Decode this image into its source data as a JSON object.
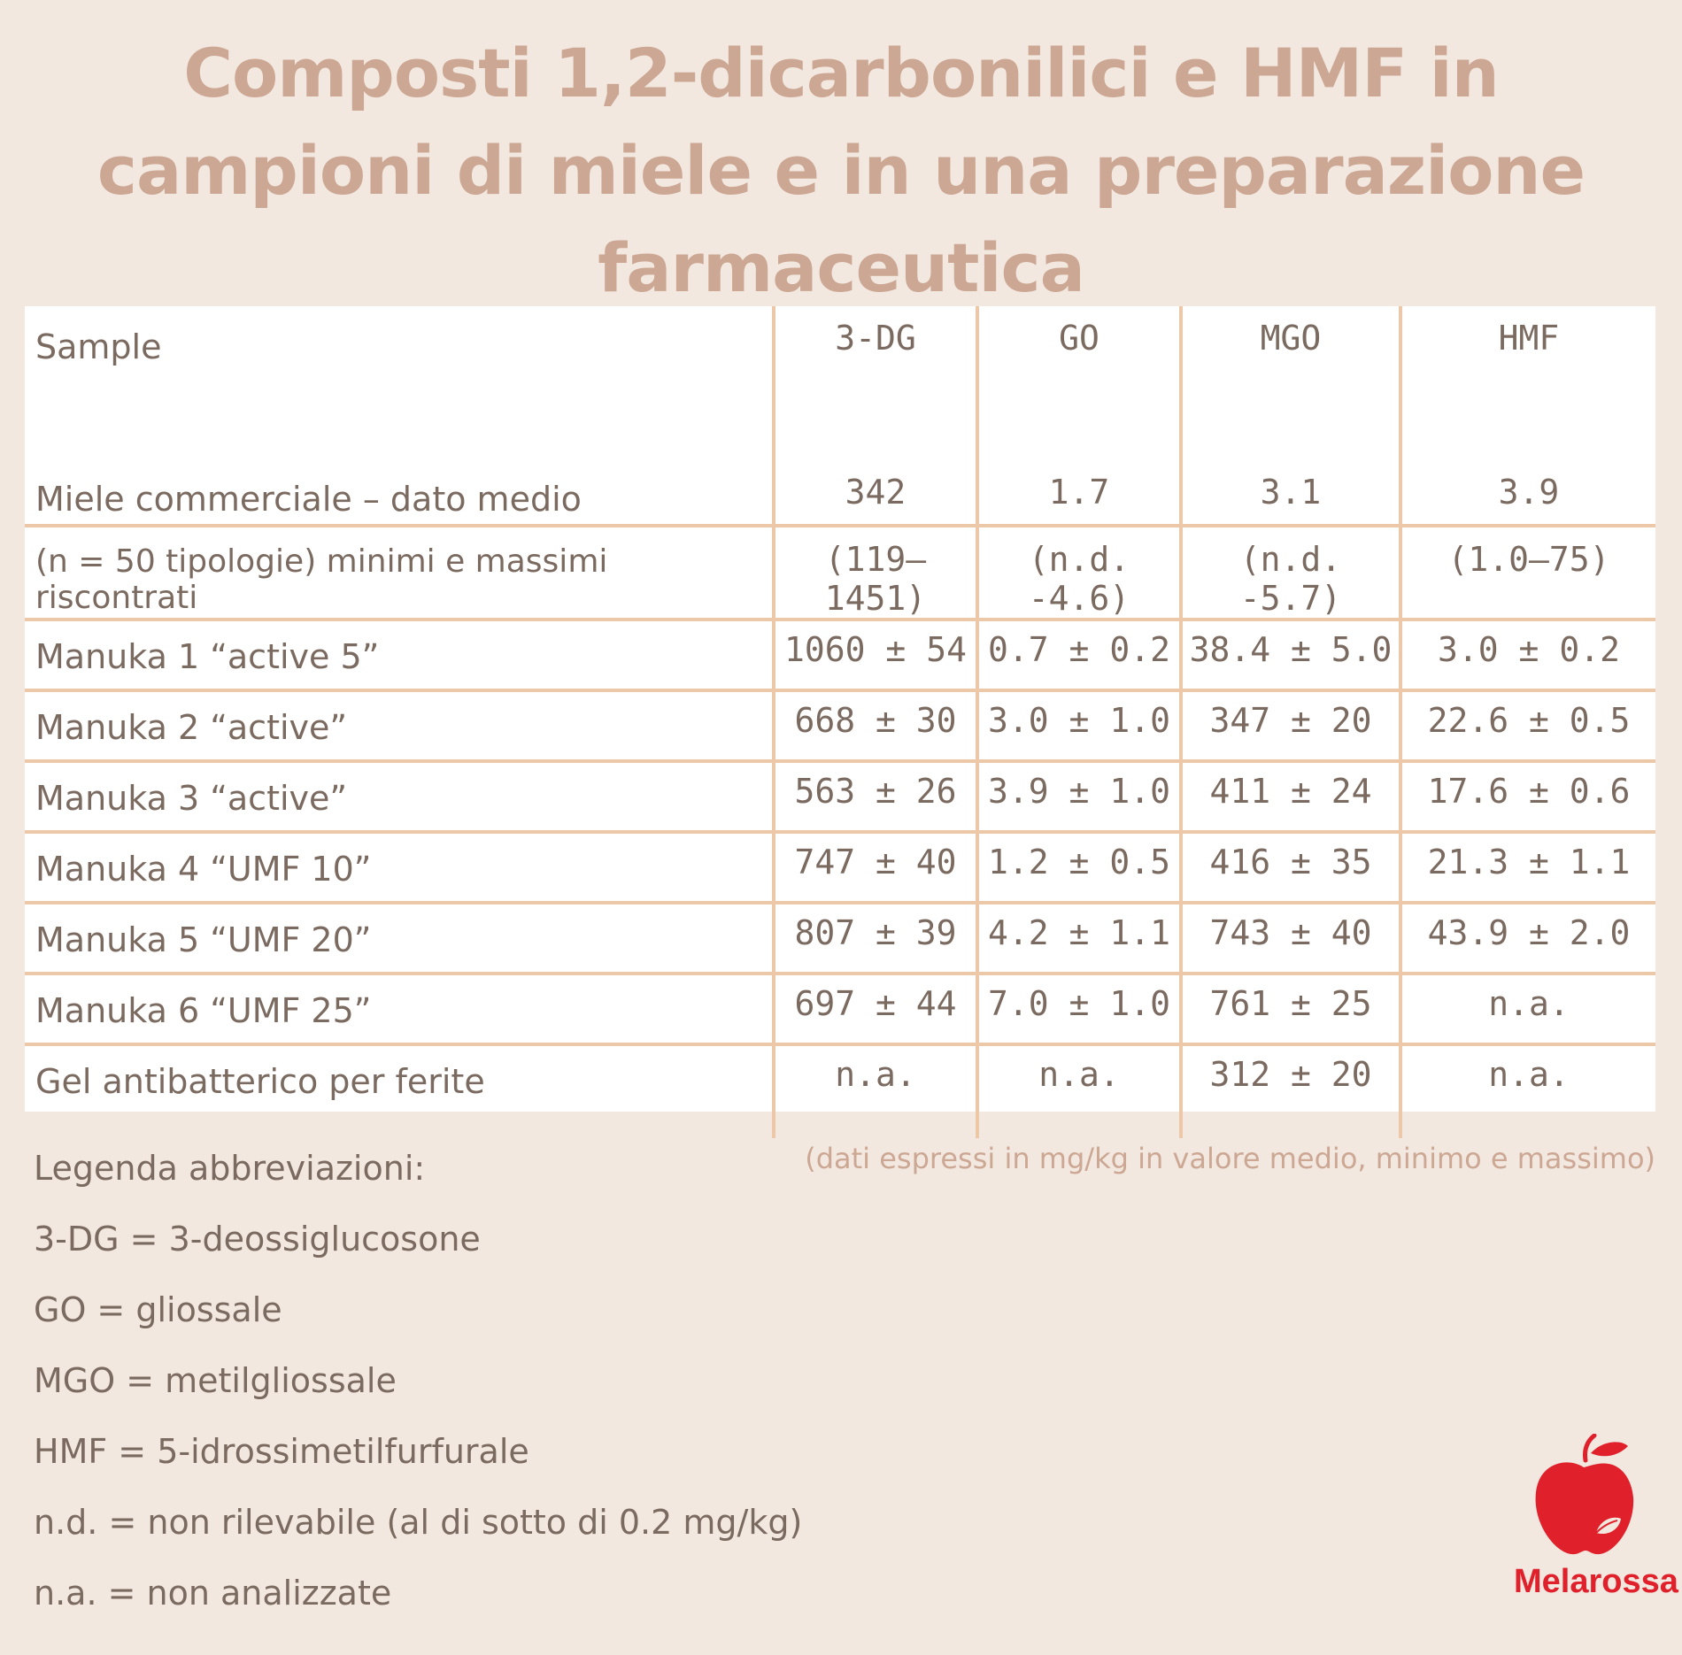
{
  "title": "Composti 1,2-dicarbonilici e HMF in campioni di miele e in una preparazione farmaceutica",
  "table": {
    "headers": [
      "Sample",
      "3-DG",
      "GO",
      "MGO",
      "HMF"
    ],
    "avg_row": {
      "label": "Miele commerciale – dato medio",
      "values": [
        "342",
        "1.7",
        "3.1",
        "3.9"
      ]
    },
    "range_row": {
      "label": "(n = 50 tipologie) minimi e massimi riscontrati",
      "values": [
        "(119–1451)",
        "(n.d. -4.6)",
        "(n.d. -5.7)",
        "(1.0–75)"
      ]
    },
    "rows": [
      {
        "label": "Manuka 1 “active 5”",
        "values": [
          "1060 ± 54",
          "0.7 ± 0.2",
          "38.4 ± 5.0",
          "3.0 ± 0.2"
        ]
      },
      {
        "label": "Manuka 2 “active”",
        "values": [
          "668 ± 30",
          "3.0 ± 1.0",
          "347 ± 20",
          "22.6 ± 0.5"
        ]
      },
      {
        "label": "Manuka 3 “active”",
        "values": [
          "563 ± 26",
          "3.9 ± 1.0",
          "411 ± 24",
          "17.6 ± 0.6"
        ]
      },
      {
        "label": "Manuka 4 “UMF 10”",
        "values": [
          "747 ± 40",
          "1.2 ± 0.5",
          "416 ± 35",
          "21.3 ± 1.1"
        ]
      },
      {
        "label": "Manuka 5 “UMF 20”",
        "values": [
          "807 ± 39",
          "4.2 ± 1.1",
          "743 ± 40",
          "43.9 ± 2.0"
        ]
      },
      {
        "label": "Manuka 6 “UMF 25”",
        "values": [
          "697 ± 44",
          "7.0 ± 1.0",
          "761 ± 25",
          "n.a."
        ]
      },
      {
        "label": "Gel antibatterico per ferite",
        "values": [
          "n.a.",
          "n.a.",
          "312 ± 20",
          "n.a."
        ]
      }
    ]
  },
  "units_note": "(dati espressi in mg/kg in valore medio, minimo e massimo)",
  "legend": {
    "title": "Legenda abbreviazioni:",
    "items": [
      "3-DG = 3-deossiglucosone",
      "GO = gliossale",
      "MGO = metilgliossale",
      "HMF = 5-idrossimetilfurfurale",
      "n.d. = non rilevabile (al di sotto di 0.2 mg/kg)",
      "n.a. = non analizzate"
    ]
  },
  "brand": {
    "name": "Melarossa",
    "icon": "apple-icon",
    "color": "#e0202a"
  },
  "colors": {
    "background": "#f2e8e0",
    "title": "#cca793",
    "text": "#7b6a60",
    "grid": "#ecc8a8"
  }
}
